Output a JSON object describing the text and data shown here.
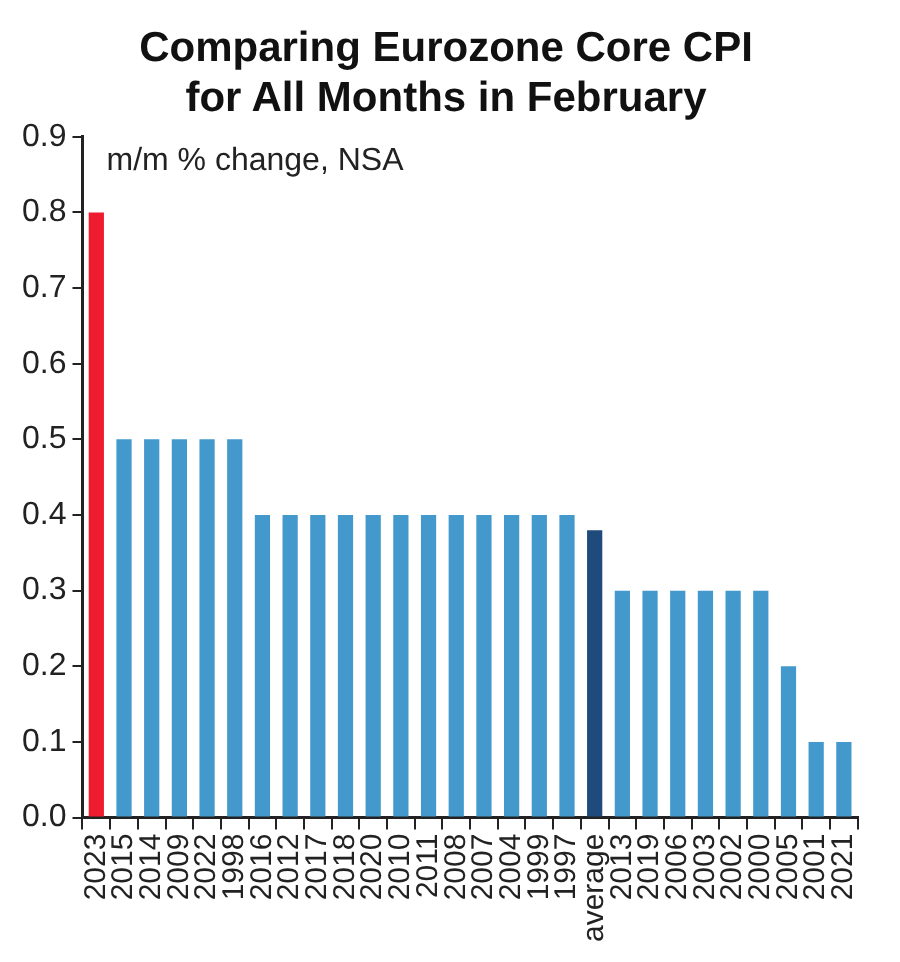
{
  "chart_data": {
    "type": "bar",
    "title": "Comparing Eurozone Core CPI\nfor All Months in February",
    "annotations": [
      "m/m % change, NSA"
    ],
    "categories": [
      "2023",
      "2015",
      "2014",
      "2009",
      "2022",
      "1998",
      "2016",
      "2012",
      "2017",
      "2018",
      "2020",
      "2010",
      "2011",
      "2008",
      "2007",
      "2004",
      "1999",
      "1997",
      "average",
      "2013",
      "2019",
      "2006",
      "2003",
      "2002",
      "2000",
      "2005",
      "2001",
      "2021"
    ],
    "values": [
      0.8,
      0.5,
      0.5,
      0.5,
      0.5,
      0.5,
      0.4,
      0.4,
      0.4,
      0.4,
      0.4,
      0.4,
      0.4,
      0.4,
      0.4,
      0.4,
      0.4,
      0.4,
      0.38,
      0.3,
      0.3,
      0.3,
      0.3,
      0.3,
      0.3,
      0.2,
      0.1,
      0.1
    ],
    "colors": [
      "#ee1c2e",
      "#4399cc",
      "#4399cc",
      "#4399cc",
      "#4399cc",
      "#4399cc",
      "#4399cc",
      "#4399cc",
      "#4399cc",
      "#4399cc",
      "#4399cc",
      "#4399cc",
      "#4399cc",
      "#4399cc",
      "#4399cc",
      "#4399cc",
      "#4399cc",
      "#4399cc",
      "#1f4a7c",
      "#4399cc",
      "#4399cc",
      "#4399cc",
      "#4399cc",
      "#4399cc",
      "#4399cc",
      "#4399cc",
      "#4399cc",
      "#4399cc"
    ],
    "ylim": [
      0,
      0.9
    ],
    "yticks": [
      {
        "value": 0,
        "label": "0.0"
      },
      {
        "value": 0.1,
        "label": "0.1"
      },
      {
        "value": 0.2,
        "label": "0.2"
      },
      {
        "value": 0.3,
        "label": "0.3"
      },
      {
        "value": 0.4,
        "label": "0.4"
      },
      {
        "value": 0.5,
        "label": "0.5"
      },
      {
        "value": 0.6,
        "label": "0.6"
      },
      {
        "value": 0.7,
        "label": "0.7"
      },
      {
        "value": 0.8,
        "label": "0.8"
      },
      {
        "value": 0.9,
        "label": "0.9"
      }
    ],
    "grid": false,
    "legend": false
  }
}
